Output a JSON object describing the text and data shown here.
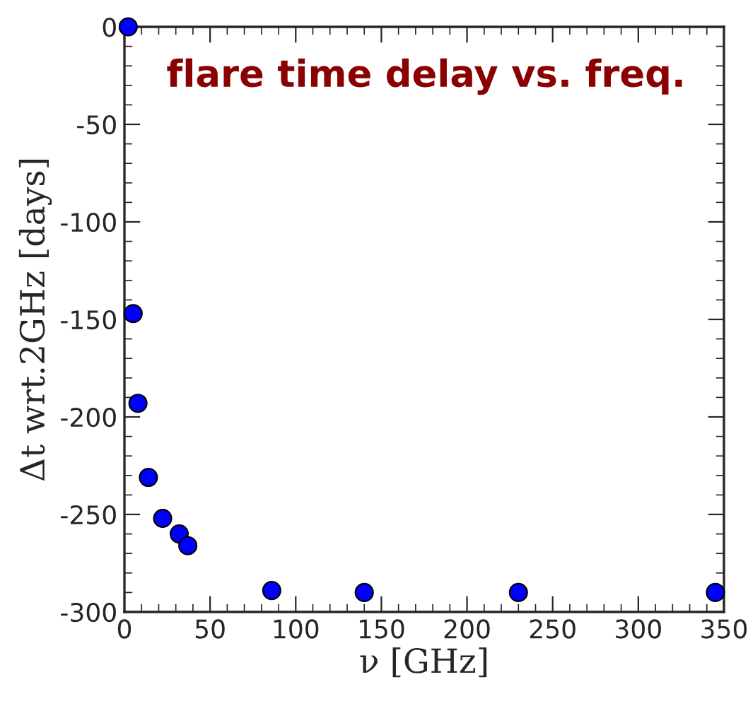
{
  "chart_data": {
    "type": "scatter",
    "title": "flare time delay vs. freq.",
    "xlabel": "ν [GHz]",
    "ylabel": "Δt wrt.2GHz [days]",
    "series": [
      {
        "color": "#0000ff",
        "x": [
          2.2,
          5.1,
          7.9,
          14,
          22.3,
          32,
          37,
          86,
          140,
          230,
          345
        ],
        "values": [
          0,
          -147,
          -193,
          -231,
          -252,
          -260,
          -266,
          -289,
          -290,
          -290,
          -290
        ]
      }
    ],
    "xlim": [
      0,
      350
    ],
    "xticks": [
      0,
      50,
      100,
      150,
      200,
      250,
      300,
      350
    ],
    "ylim": [
      -300,
      0
    ],
    "yticks": [
      -300,
      -250,
      -200,
      -150,
      -100,
      -50,
      0
    ],
    "grid": false,
    "legend": false,
    "marker": "circle"
  }
}
